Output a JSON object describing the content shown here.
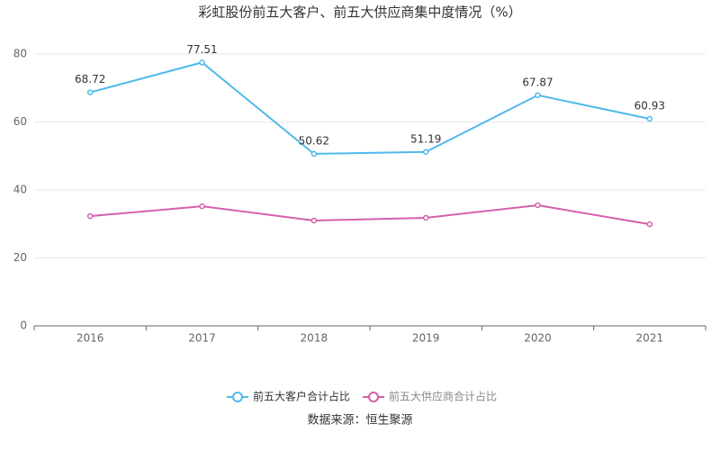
{
  "chart_data": {
    "type": "line",
    "title": "彩虹股份前五大客户、前五大供应商集中度情况（%）",
    "categories": [
      "2016",
      "2017",
      "2018",
      "2019",
      "2020",
      "2021"
    ],
    "series": [
      {
        "name": "前五大客户合计占比",
        "color": "#4fb9ec",
        "labels": true,
        "values": [
          68.72,
          77.51,
          50.62,
          51.19,
          67.87,
          60.93
        ]
      },
      {
        "name": "前五大供应商合计占比",
        "color": "#d460aa",
        "labels": false,
        "values": [
          32.3,
          35.2,
          31.0,
          31.8,
          35.5,
          29.9
        ]
      }
    ],
    "ylim": [
      0,
      80
    ],
    "yticks": [
      0,
      20,
      40,
      60,
      80
    ],
    "grid": true,
    "legend": "bottom",
    "source": "数据来源：恒生聚源"
  }
}
